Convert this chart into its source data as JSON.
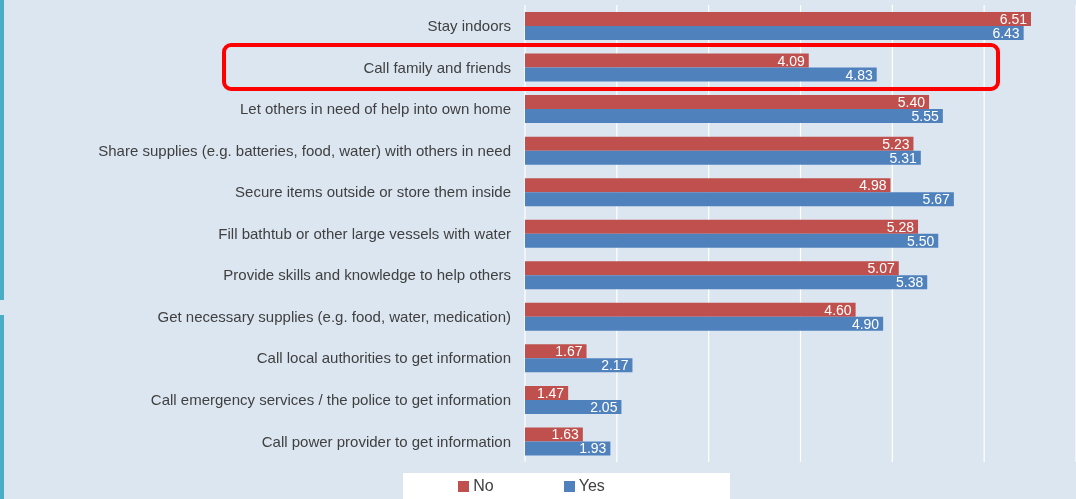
{
  "chart_data": {
    "type": "bar",
    "orientation": "horizontal",
    "categories": [
      "Stay indoors",
      "Call family and friends",
      "Let others in need of help into own home",
      "Share supplies (e.g. batteries, food, water) with others in need",
      "Secure items outside or store them inside",
      "Fill bathtub or other large vessels with water",
      "Provide skills and knowledge to help others",
      "Get necessary supplies (e.g. food, water, medication)",
      "Call local authorities to get information",
      "Call  emergency services / the police to get information",
      "Call power provider to get information"
    ],
    "series": [
      {
        "name": "No",
        "color": "#c0504d",
        "values": [
          6.51,
          4.09,
          5.4,
          5.23,
          4.98,
          5.28,
          5.07,
          4.6,
          1.67,
          1.47,
          1.63
        ],
        "value_labels": [
          "6.51",
          "4.09",
          "5.40",
          "5.23",
          "4.98",
          "5.28",
          "5.07",
          "4.60",
          "1.67",
          "1.47",
          "1.63"
        ]
      },
      {
        "name": "Yes",
        "color": "#4f81bd",
        "values": [
          6.43,
          4.83,
          5.55,
          5.31,
          5.67,
          5.5,
          5.38,
          4.9,
          2.17,
          2.05,
          1.93
        ],
        "value_labels": [
          "6.43",
          "4.83",
          "5.55",
          "5.31",
          "5.67",
          "5.50",
          "5.38",
          "4.90",
          "2.17",
          "2.05",
          "1.93"
        ]
      }
    ],
    "xlim": [
      1,
      7
    ],
    "xticks": [
      {
        "value": 1,
        "label": null
      },
      {
        "value": 2,
        "label": null
      },
      {
        "value": 3,
        "label": null
      },
      {
        "value": 4,
        "label": null
      },
      {
        "value": 5,
        "label": null
      },
      {
        "value": 6,
        "label": null
      },
      {
        "value": 7,
        "label": null
      }
    ],
    "tick_labels": "y",
    "grid": "x",
    "legend": "bottom"
  }
}
